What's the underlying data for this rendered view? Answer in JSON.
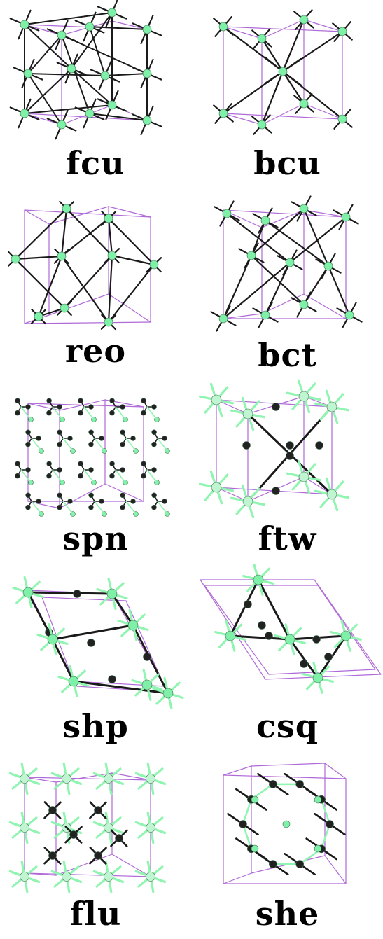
{
  "figure": {
    "colors": {
      "cell_edge": "#b06ad8",
      "bond": "#1a1a1a",
      "node_green": "#7ff0a8",
      "node_pale": "#bff5d0",
      "node_dark": "#222222",
      "spike_green": "#8ff5b0"
    },
    "panels": [
      {
        "label": "fcu"
      },
      {
        "label": "bcu"
      },
      {
        "label": "reo"
      },
      {
        "label": "bct"
      },
      {
        "label": "spn"
      },
      {
        "label": "ftw"
      },
      {
        "label": "shp"
      },
      {
        "label": "csq"
      },
      {
        "label": "flu"
      },
      {
        "label": "she"
      }
    ]
  }
}
